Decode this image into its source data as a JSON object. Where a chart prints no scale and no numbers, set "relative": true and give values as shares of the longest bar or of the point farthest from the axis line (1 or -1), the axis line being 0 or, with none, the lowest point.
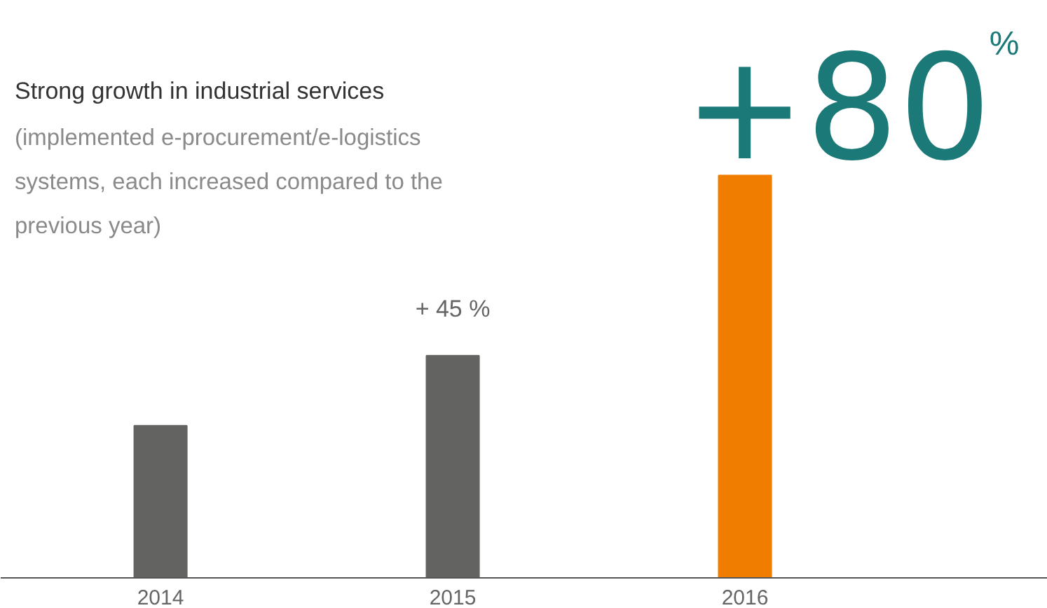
{
  "chart_data": {
    "type": "bar",
    "title": "Strong growth in industrial services",
    "subtitle": "(implemented e-procurement/e-logistics\nsystems, each increased compared to the\nprevious year)",
    "categories": [
      "2014",
      "2015",
      "2016"
    ],
    "values": [
      0.378,
      0.552,
      1
    ],
    "colors": [
      "#636361",
      "#636361",
      "#f07d00"
    ],
    "relative": true,
    "annotations": [
      {
        "text": "+ 45 %",
        "x": "2015",
        "y": 0.552
      },
      {
        "text": "+80$^{%}$",
        "x": "2016",
        "y": 1
      }
    ],
    "grid": false
  }
}
